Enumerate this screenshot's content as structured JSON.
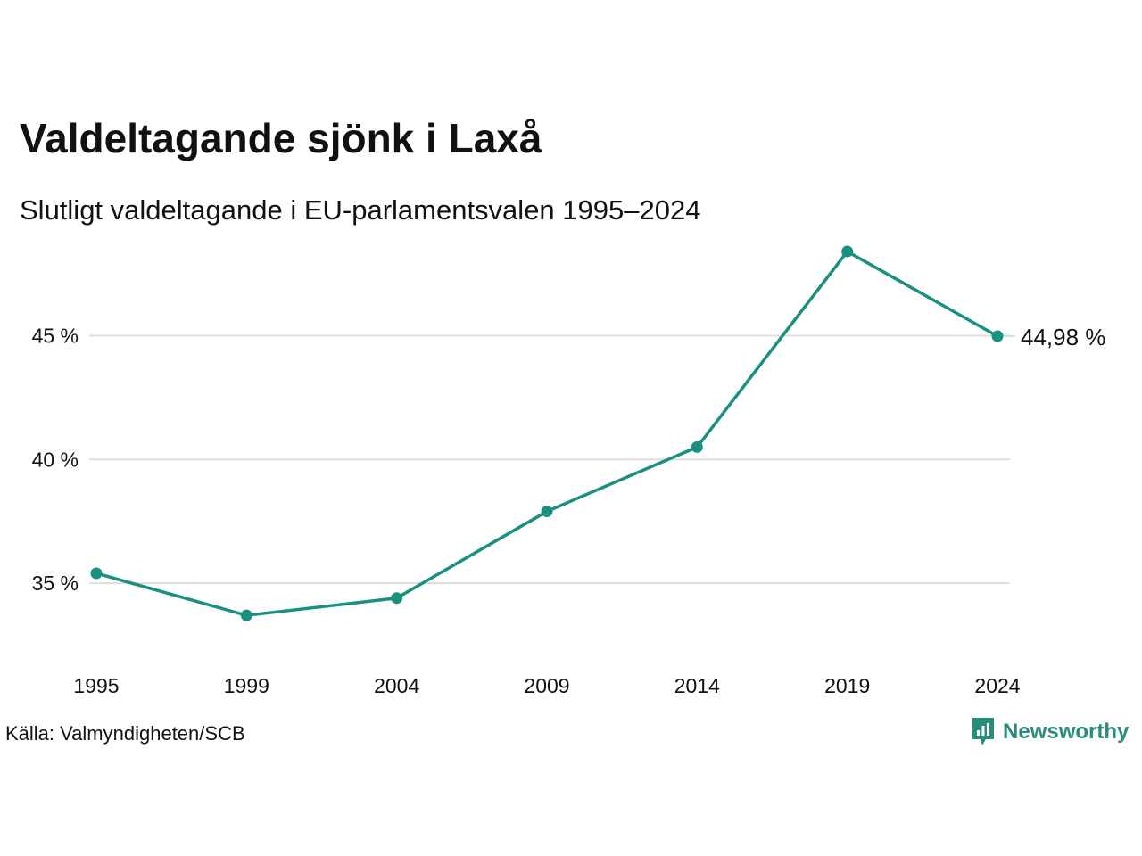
{
  "title": "Valdeltagande sjönk i Laxå",
  "subtitle": "Slutligt valdeltagande i EU-parlamentsvalen 1995–2024",
  "source": "Källa: Valmyndigheten/SCB",
  "logo_text": "Newsworthy",
  "colors": {
    "line": "#1a9080",
    "grid": "#dddddd",
    "brand": "#2a8c7a"
  },
  "chart_data": {
    "type": "line",
    "title": "Valdeltagande sjönk i Laxå",
    "subtitle": "Slutligt valdeltagande i EU-parlamentsvalen 1995–2024",
    "xlabel": "",
    "ylabel": "",
    "x": [
      "1995",
      "1999",
      "2004",
      "2009",
      "2014",
      "2019",
      "2024"
    ],
    "series": [
      {
        "values": [
          35.4,
          33.7,
          34.4,
          37.9,
          40.5,
          48.4,
          44.98
        ]
      }
    ],
    "ylim": [
      32.5,
      49.5
    ],
    "yticks": [
      35,
      40,
      45
    ],
    "ytick_labels": [
      "35 %",
      "40 %",
      "45 %"
    ],
    "end_label": "44,98 %",
    "grid": true,
    "legend": "none"
  }
}
